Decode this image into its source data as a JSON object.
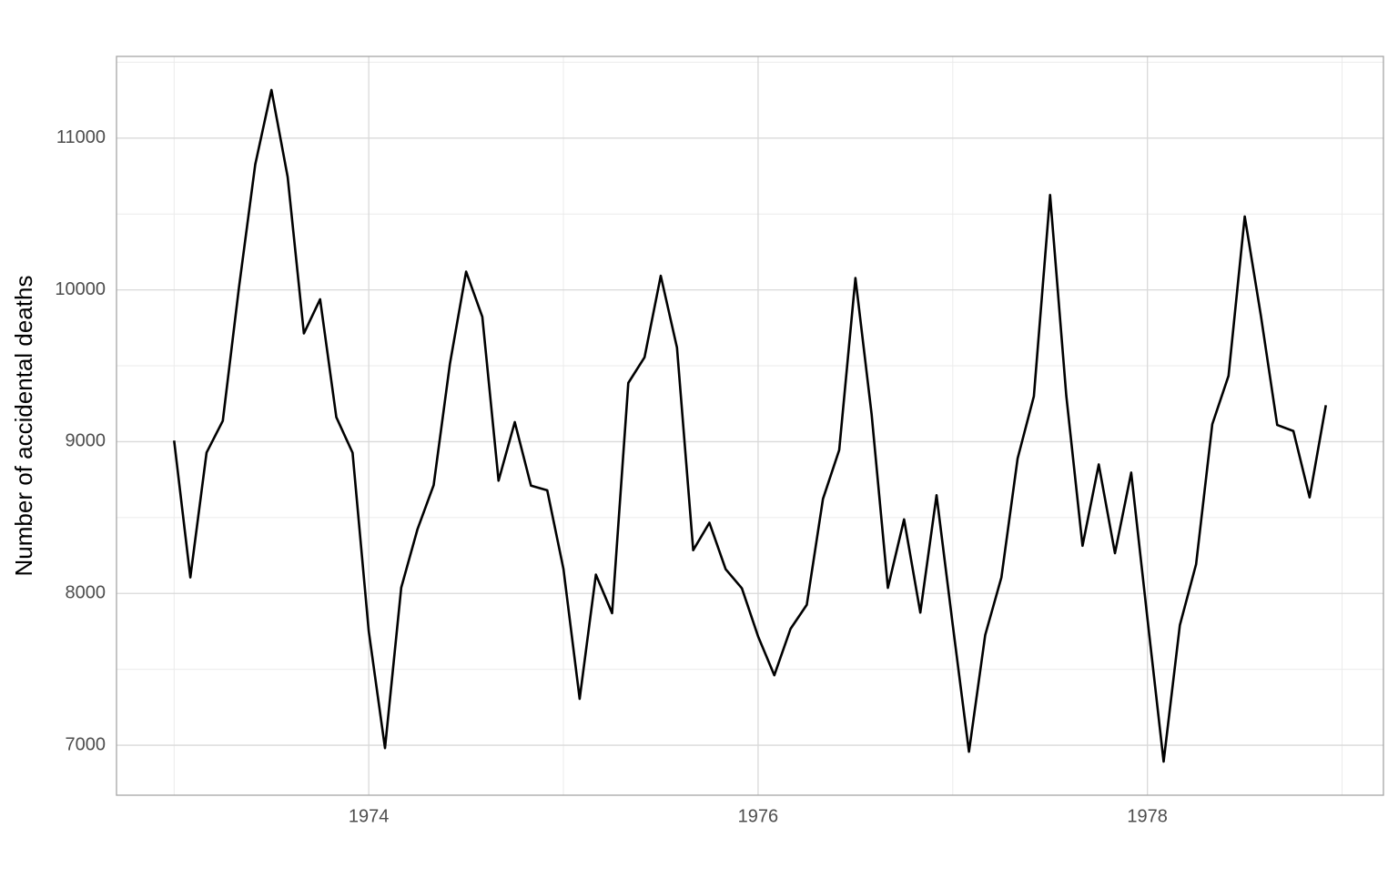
{
  "chart_data": {
    "type": "line",
    "y_label": "Number of accidental deaths",
    "x": [
      1973,
      1973.0833,
      1973.1667,
      1973.25,
      1973.3333,
      1973.4167,
      1973.5,
      1973.5833,
      1973.6667,
      1973.75,
      1973.8333,
      1973.9167,
      1974,
      1974.0833,
      1974.1667,
      1974.25,
      1974.3333,
      1974.4167,
      1974.5,
      1974.5833,
      1974.6667,
      1974.75,
      1974.8333,
      1974.9167,
      1975,
      1975.0833,
      1975.1667,
      1975.25,
      1975.3333,
      1975.4167,
      1975.5,
      1975.5833,
      1975.6667,
      1975.75,
      1975.8333,
      1975.9167,
      1976,
      1976.0833,
      1976.1667,
      1976.25,
      1976.3333,
      1976.4167,
      1976.5,
      1976.5833,
      1976.6667,
      1976.75,
      1976.8333,
      1976.9167,
      1977,
      1977.0833,
      1977.1667,
      1977.25,
      1977.3333,
      1977.4167,
      1977.5,
      1977.5833,
      1977.6667,
      1977.75,
      1977.8333,
      1977.9167,
      1978,
      1978.0833,
      1978.1667,
      1978.25,
      1978.3333,
      1978.4167,
      1978.5,
      1978.5833,
      1978.6667,
      1978.75,
      1978.8333,
      1978.9167
    ],
    "series": [
      {
        "color": "#000000",
        "values": [
          9007,
          8106,
          8928,
          9137,
          10017,
          10826,
          11317,
          10744,
          9713,
          9938,
          9161,
          8927,
          7750,
          6981,
          8038,
          8422,
          8714,
          9512,
          10120,
          9823,
          8743,
          9129,
          8710,
          8680,
          8162,
          7306,
          8124,
          7870,
          9387,
          9556,
          10093,
          9620,
          8285,
          8466,
          8160,
          8034,
          7717,
          7461,
          7767,
          7925,
          8623,
          8945,
          10078,
          9179,
          8037,
          8488,
          7874,
          8647,
          7792,
          6957,
          7726,
          8106,
          8890,
          9299,
          10625,
          9302,
          8314,
          8850,
          8265,
          8796,
          7836,
          6892,
          7791,
          8192,
          9115,
          9434,
          10484,
          9827,
          9110,
          9070,
          8633,
          9240
        ]
      }
    ],
    "xlim": [
      1972.704,
      1979.2125
    ],
    "xticks": [
      1974,
      1976,
      1978
    ],
    "xminor_ticks": [
      1973,
      1975,
      1977,
      1979
    ],
    "ylim": [
      6670.75,
      11538.25
    ],
    "yticks": [
      7000,
      8000,
      9000,
      10000,
      11000
    ],
    "yminor_ticks": [
      7500,
      8500,
      9500,
      10500,
      11500
    ],
    "grid": true
  }
}
